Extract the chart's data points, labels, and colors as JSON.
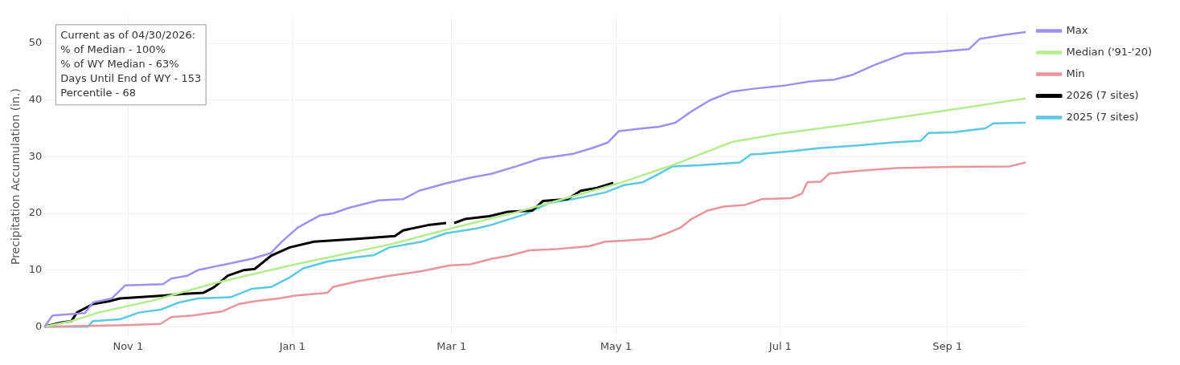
{
  "chart_data": {
    "type": "line",
    "ylabel": "Precipitation Accumulation (in.)",
    "xlim": [
      "2025-10-01",
      "2026-09-30"
    ],
    "xticks": [
      {
        "value": "2025-11-01",
        "label": "Nov 1"
      },
      {
        "value": "2026-01-01",
        "label": "Jan 1"
      },
      {
        "value": "2026-03-01",
        "label": "Mar 1"
      },
      {
        "value": "2026-05-01",
        "label": "May 1"
      },
      {
        "value": "2026-07-01",
        "label": "Jul 1"
      },
      {
        "value": "2026-09-01",
        "label": "Sep 1"
      }
    ],
    "ylim": [
      -2,
      55
    ],
    "yticks": [
      0,
      10,
      20,
      30,
      40,
      50
    ],
    "grid": true,
    "legend": "right",
    "annotations": [
      "Current as of 04/30/2026:",
      "% of Median - 100%",
      "% of WY Median - 63%",
      "Days Until End of WY - 153",
      "Percentile - 68"
    ],
    "series": [
      {
        "name": "Max",
        "color": "#a18ff0",
        "x": [
          "2025-10-01",
          "2025-10-04",
          "2025-10-16",
          "2025-10-19",
          "2025-10-26",
          "2025-10-31",
          "2025-11-14",
          "2025-11-17",
          "2025-11-23",
          "2025-11-27",
          "2025-12-09",
          "2025-12-17",
          "2025-12-24",
          "2025-12-28",
          "2026-01-03",
          "2026-01-11",
          "2026-01-16",
          "2026-01-22",
          "2026-02-02",
          "2026-02-11",
          "2026-02-17",
          "2026-02-27",
          "2026-03-08",
          "2026-03-16",
          "2026-03-25",
          "2026-04-03",
          "2026-04-09",
          "2026-04-15",
          "2026-04-22",
          "2026-04-28",
          "2026-05-02",
          "2026-05-11",
          "2026-05-17",
          "2026-05-23",
          "2026-05-29",
          "2026-06-05",
          "2026-06-13",
          "2026-06-21",
          "2026-07-03",
          "2026-07-12",
          "2026-07-21",
          "2026-07-28",
          "2026-08-05",
          "2026-08-16",
          "2026-08-28",
          "2026-09-09",
          "2026-09-13",
          "2026-09-22",
          "2026-09-30"
        ],
        "values": [
          0,
          2,
          2.4,
          4.3,
          5,
          7.3,
          7.5,
          8.5,
          9,
          10,
          11.2,
          12,
          13,
          15,
          17.5,
          19.6,
          20,
          21,
          22.3,
          22.5,
          24,
          25.3,
          26.3,
          27,
          28.3,
          29.7,
          30.1,
          30.5,
          31.5,
          32.5,
          34.5,
          35,
          35.3,
          36,
          38,
          40,
          41.5,
          42,
          42.6,
          43.3,
          43.6,
          44.5,
          46.2,
          48.2,
          48.5,
          49,
          50.8,
          51.5,
          52
        ]
      },
      {
        "name": "Median ('91-'20)",
        "color": "#b4ee8c",
        "x": [
          "2025-10-01",
          "2025-10-11",
          "2025-10-21",
          "2025-11-10",
          "2025-12-04",
          "2026-01-01",
          "2026-02-06",
          "2026-03-02",
          "2026-03-25",
          "2026-05-02",
          "2026-05-23",
          "2026-06-13",
          "2026-07-01",
          "2026-07-28",
          "2026-09-01",
          "2026-09-30"
        ],
        "values": [
          0,
          1,
          2.5,
          4.6,
          7.8,
          10.9,
          14.5,
          17.5,
          20.2,
          25.3,
          28.7,
          32.6,
          34.1,
          35.8,
          38.2,
          40.3
        ]
      },
      {
        "name": "Min",
        "color": "#e8959b",
        "x": [
          "2025-10-01",
          "2025-11-01",
          "2025-11-13",
          "2025-11-17",
          "2025-11-25",
          "2025-12-06",
          "2025-12-12",
          "2025-12-18",
          "2025-12-27",
          "2026-01-02",
          "2026-01-14",
          "2026-01-16",
          "2026-01-25",
          "2026-02-06",
          "2026-02-18",
          "2026-02-28",
          "2026-03-08",
          "2026-03-16",
          "2026-03-22",
          "2026-03-30",
          "2026-04-09",
          "2026-04-21",
          "2026-04-27",
          "2026-05-04",
          "2026-05-14",
          "2026-05-20",
          "2026-05-25",
          "2026-05-29",
          "2026-06-04",
          "2026-06-10",
          "2026-06-18",
          "2026-06-24",
          "2026-07-05",
          "2026-07-09",
          "2026-07-11",
          "2026-07-16",
          "2026-07-19",
          "2026-07-30",
          "2026-08-13",
          "2026-09-03",
          "2026-09-24",
          "2026-09-30"
        ],
        "values": [
          0,
          0.3,
          0.5,
          1.7,
          2,
          2.7,
          4,
          4.5,
          5,
          5.5,
          6,
          7,
          8,
          9,
          9.8,
          10.8,
          11,
          12,
          12.5,
          13.5,
          13.7,
          14.2,
          15,
          15.2,
          15.5,
          16.5,
          17.5,
          19,
          20.5,
          21.2,
          21.5,
          22.5,
          22.7,
          23.5,
          25.5,
          25.6,
          27,
          27.5,
          28,
          28.2,
          28.3,
          29
        ]
      },
      {
        "name": "2026 (7 sites)",
        "color": "#000000",
        "x": [
          "2025-10-01",
          "2025-10-07",
          "2025-10-11",
          "2025-10-13",
          "2025-10-19",
          "2025-10-25",
          "2025-10-29",
          "2025-11-14",
          "2025-11-22",
          "2025-11-29",
          "2025-12-03",
          "2025-12-08",
          "2025-12-14",
          "2025-12-18",
          "2025-12-24",
          "2025-12-31",
          "2026-01-09",
          "2026-01-25",
          "2026-02-08",
          "2026-02-11",
          "2026-02-21",
          "2026-02-27",
          "2026-03-01",
          "2026-03-02",
          "2026-03-06",
          "2026-03-15",
          "2026-03-22",
          "2026-03-31",
          "2026-04-04",
          "2026-04-13",
          "2026-04-18",
          "2026-04-24",
          "2026-04-30"
        ],
        "values": [
          0,
          0.7,
          1,
          2.5,
          4,
          4.5,
          5,
          5.5,
          5.8,
          6,
          7,
          9,
          10,
          10.2,
          12.5,
          14,
          15,
          15.5,
          16,
          17,
          18,
          18.3,
          null,
          18.3,
          19,
          19.5,
          20.3,
          20.5,
          22.2,
          22.5,
          24,
          24.5,
          25.4
        ]
      },
      {
        "name": "2025 (7 sites)",
        "color": "#5bc8e4",
        "x": [
          "2025-10-01",
          "2025-10-17",
          "2025-10-19",
          "2025-10-29",
          "2025-11-05",
          "2025-11-13",
          "2025-11-20",
          "2025-11-27",
          "2025-12-09",
          "2025-12-17",
          "2025-12-24",
          "2025-12-31",
          "2026-01-05",
          "2026-01-14",
          "2026-01-25",
          "2026-01-31",
          "2026-02-06",
          "2026-02-18",
          "2026-02-27",
          "2026-03-10",
          "2026-03-16",
          "2026-03-28",
          "2026-04-06",
          "2026-04-15",
          "2026-04-27",
          "2026-05-04",
          "2026-05-11",
          "2026-05-17",
          "2026-05-22",
          "2026-06-01",
          "2026-06-16",
          "2026-06-20",
          "2026-06-24",
          "2026-07-06",
          "2026-07-15",
          "2026-07-30",
          "2026-08-11",
          "2026-08-22",
          "2026-08-25",
          "2026-09-03",
          "2026-09-15",
          "2026-09-18",
          "2026-09-30"
        ],
        "values": [
          0,
          0,
          1,
          1.3,
          2.5,
          3,
          4.3,
          5,
          5.2,
          6.7,
          7,
          8.7,
          10.3,
          11.5,
          12.3,
          12.6,
          14,
          15,
          16.5,
          17.3,
          18,
          19.8,
          21.8,
          22.5,
          23.7,
          25,
          25.5,
          27,
          28.3,
          28.5,
          29,
          30.4,
          30.5,
          31,
          31.5,
          32,
          32.5,
          32.8,
          34.2,
          34.3,
          35,
          35.9,
          36
        ]
      }
    ]
  }
}
